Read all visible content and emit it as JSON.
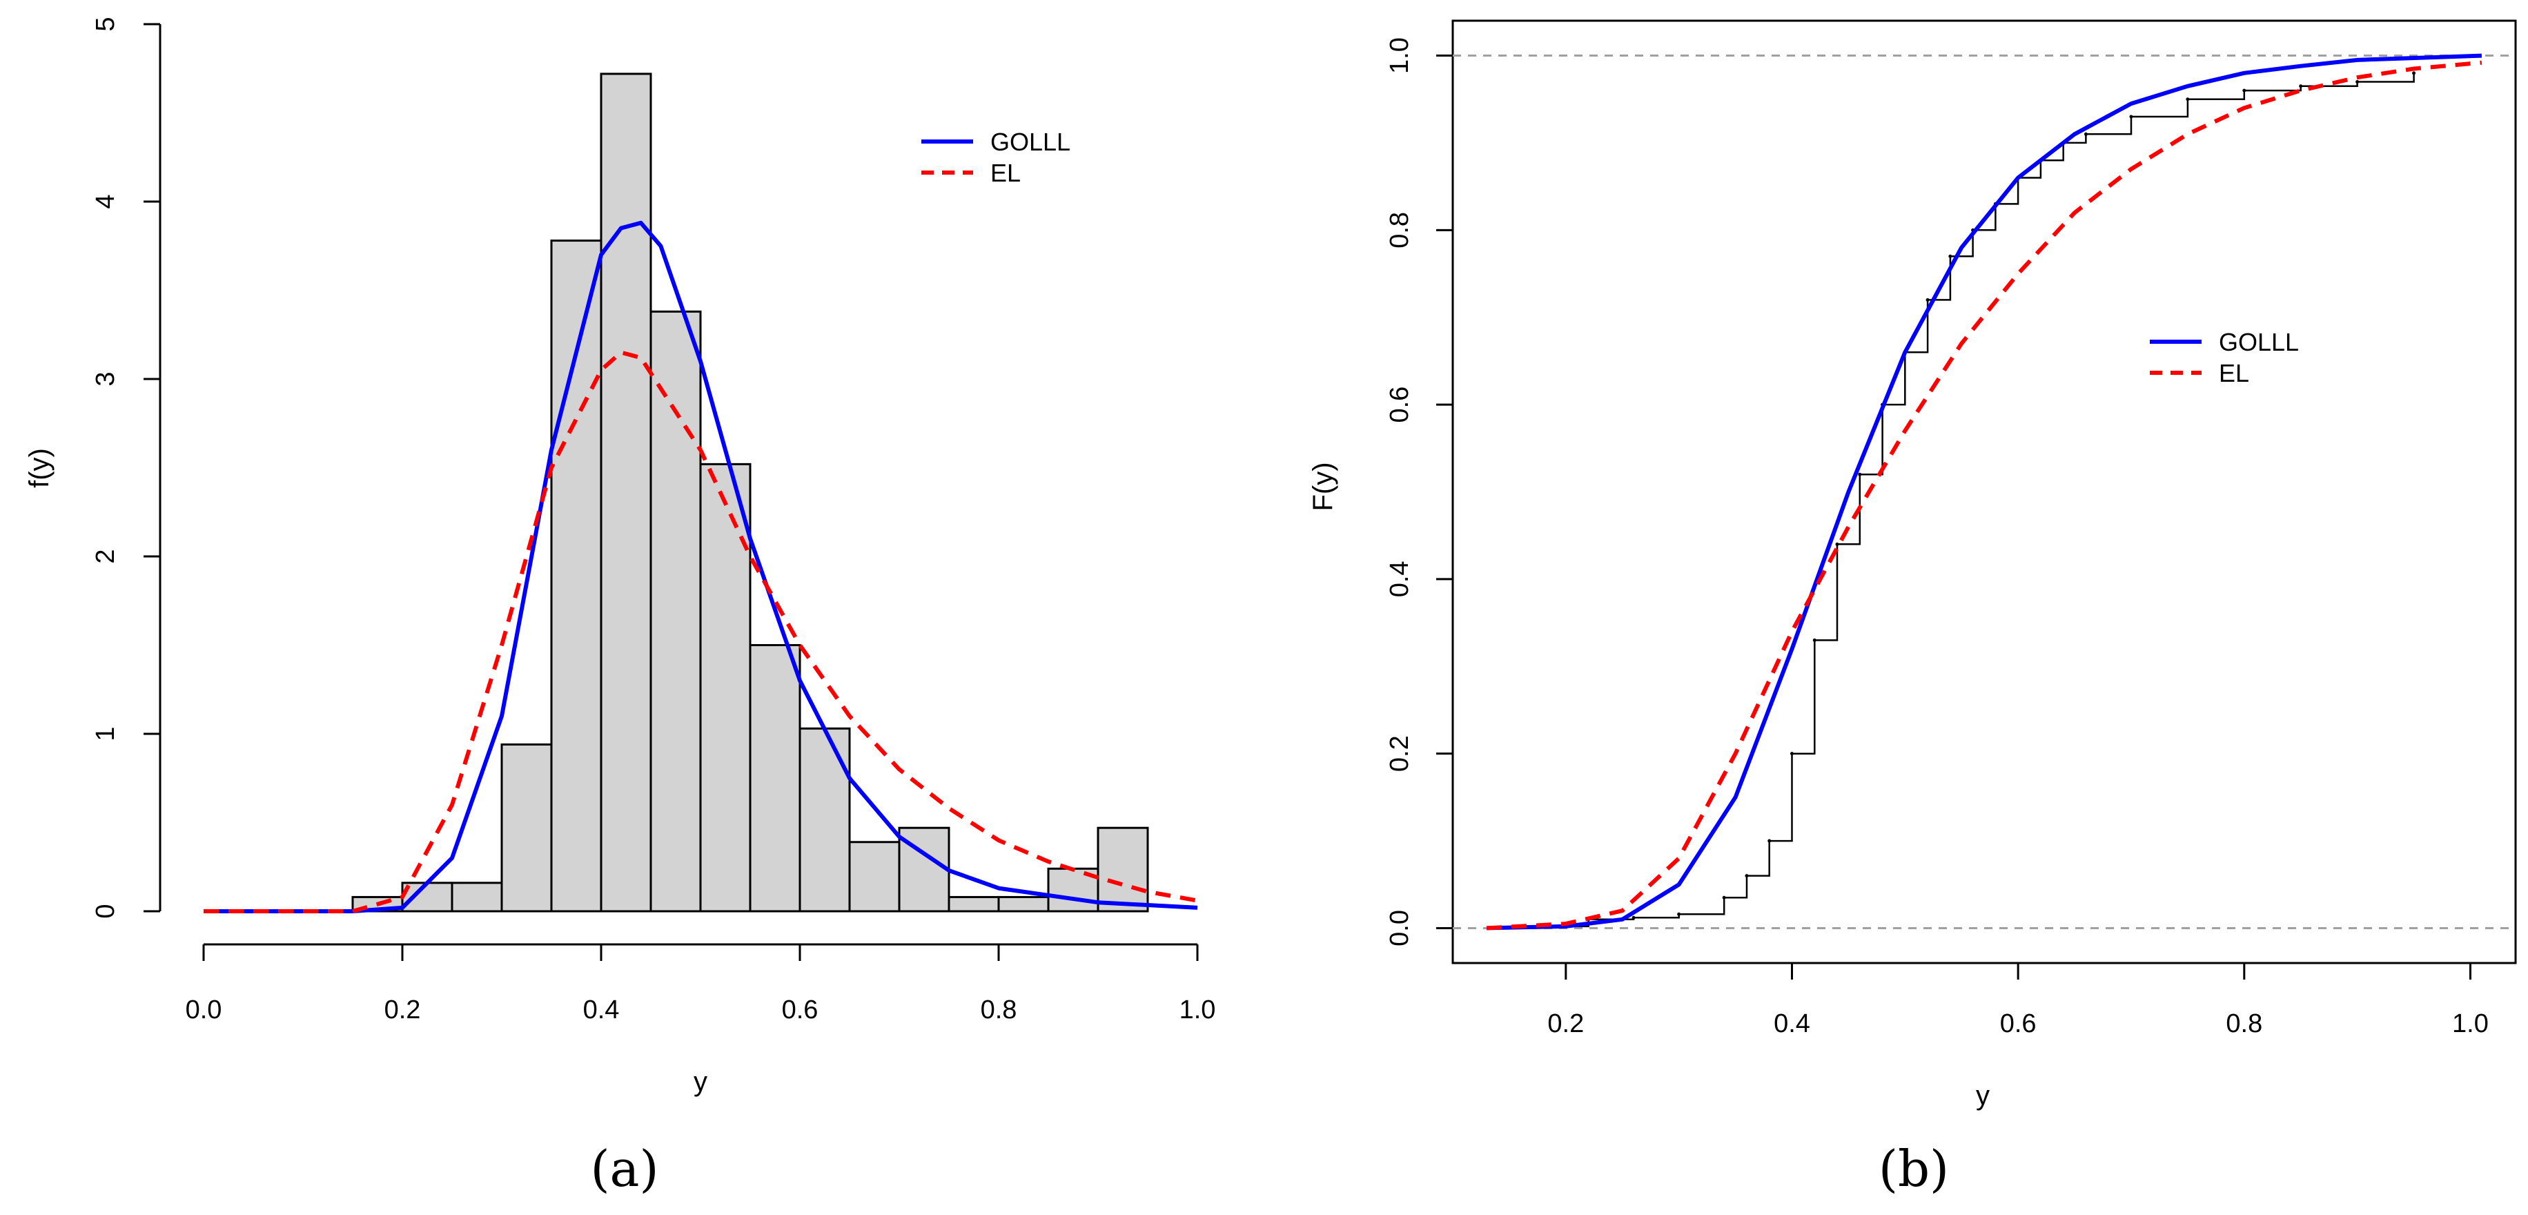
{
  "chart_data": [
    {
      "panel_label": "(a)",
      "type": "bar",
      "subtype": "histogram-with-density-curves",
      "title": "",
      "xlabel": "y",
      "ylabel": "f(y)",
      "xlim": [
        0,
        1
      ],
      "ylim": [
        0,
        5
      ],
      "xticks": [
        "0.0",
        "0.2",
        "0.4",
        "0.6",
        "0.8",
        "1.0"
      ],
      "yticks": [
        "0",
        "1",
        "2",
        "3",
        "4",
        "5"
      ],
      "histogram": {
        "bin_edges": [
          0.15,
          0.2,
          0.25,
          0.3,
          0.35,
          0.4,
          0.45,
          0.5,
          0.55,
          0.6,
          0.65,
          0.7,
          0.75,
          0.8,
          0.85,
          0.9,
          0.95
        ],
        "density": [
          0.08,
          0.16,
          0.16,
          0.94,
          3.78,
          4.72,
          3.38,
          2.52,
          1.5,
          1.03,
          0.39,
          0.47,
          0.08,
          0.08,
          0.24,
          0.47
        ],
        "fill": "#d3d3d3",
        "edge": "#000000"
      },
      "series": [
        {
          "name": "GOLLL",
          "color": "#0000ff",
          "style": "solid",
          "x": [
            0.0,
            0.15,
            0.2,
            0.25,
            0.3,
            0.35,
            0.4,
            0.42,
            0.44,
            0.46,
            0.5,
            0.55,
            0.6,
            0.65,
            0.7,
            0.75,
            0.8,
            0.9,
            1.0
          ],
          "values": [
            0.0,
            0.0,
            0.02,
            0.3,
            1.1,
            2.6,
            3.7,
            3.85,
            3.88,
            3.75,
            3.1,
            2.1,
            1.3,
            0.75,
            0.42,
            0.23,
            0.13,
            0.05,
            0.02
          ]
        },
        {
          "name": "EL",
          "color": "#ff0000",
          "style": "dashed",
          "x": [
            0.0,
            0.15,
            0.2,
            0.25,
            0.3,
            0.35,
            0.4,
            0.42,
            0.44,
            0.5,
            0.55,
            0.6,
            0.65,
            0.7,
            0.75,
            0.8,
            0.85,
            0.9,
            0.95,
            1.0
          ],
          "values": [
            0.0,
            0.0,
            0.08,
            0.6,
            1.5,
            2.5,
            3.05,
            3.15,
            3.12,
            2.6,
            2.0,
            1.5,
            1.1,
            0.8,
            0.58,
            0.4,
            0.28,
            0.19,
            0.11,
            0.06
          ]
        }
      ],
      "legend": {
        "position": "top-right",
        "entries": [
          "GOLLL",
          "EL"
        ]
      }
    },
    {
      "panel_label": "(b)",
      "type": "line",
      "subtype": "empirical-and-fitted-cdf",
      "title": "",
      "xlabel": "y",
      "ylabel": "F(y)",
      "xlim": [
        0.1,
        1.04
      ],
      "ylim": [
        -0.04,
        1.04
      ],
      "xticks": [
        "0.2",
        "0.4",
        "0.6",
        "0.8",
        "1.0"
      ],
      "yticks": [
        "0.0",
        "0.2",
        "0.4",
        "0.6",
        "0.8",
        "1.0"
      ],
      "reference_lines": [
        0.0,
        1.0
      ],
      "empirical": {
        "name": "Empirical",
        "color": "#000000",
        "x": [
          0.18,
          0.22,
          0.26,
          0.3,
          0.34,
          0.36,
          0.38,
          0.4,
          0.42,
          0.44,
          0.46,
          0.48,
          0.5,
          0.52,
          0.54,
          0.56,
          0.58,
          0.6,
          0.62,
          0.64,
          0.66,
          0.7,
          0.75,
          0.8,
          0.85,
          0.9,
          0.95
        ],
        "values": [
          0.002,
          0.01,
          0.012,
          0.016,
          0.035,
          0.06,
          0.1,
          0.2,
          0.33,
          0.44,
          0.52,
          0.6,
          0.66,
          0.72,
          0.77,
          0.8,
          0.83,
          0.86,
          0.88,
          0.9,
          0.91,
          0.93,
          0.95,
          0.96,
          0.965,
          0.97,
          0.98
        ]
      },
      "series": [
        {
          "name": "GOLLL",
          "color": "#0000ff",
          "style": "solid",
          "x": [
            0.13,
            0.2,
            0.25,
            0.3,
            0.35,
            0.4,
            0.45,
            0.5,
            0.55,
            0.6,
            0.65,
            0.7,
            0.75,
            0.8,
            0.85,
            0.9,
            1.01
          ],
          "values": [
            0.0,
            0.002,
            0.01,
            0.05,
            0.15,
            0.32,
            0.5,
            0.66,
            0.78,
            0.86,
            0.91,
            0.945,
            0.965,
            0.98,
            0.988,
            0.995,
            1.0
          ]
        },
        {
          "name": "EL",
          "color": "#ff0000",
          "style": "dashed",
          "x": [
            0.13,
            0.2,
            0.25,
            0.3,
            0.35,
            0.4,
            0.45,
            0.5,
            0.55,
            0.6,
            0.65,
            0.7,
            0.75,
            0.8,
            0.85,
            0.9,
            0.95,
            1.01
          ],
          "values": [
            0.0,
            0.005,
            0.02,
            0.08,
            0.2,
            0.34,
            0.46,
            0.57,
            0.67,
            0.75,
            0.82,
            0.87,
            0.91,
            0.94,
            0.96,
            0.975,
            0.985,
            0.992
          ]
        }
      ],
      "legend": {
        "position": "center-right",
        "entries": [
          "GOLLL",
          "EL"
        ]
      }
    }
  ]
}
